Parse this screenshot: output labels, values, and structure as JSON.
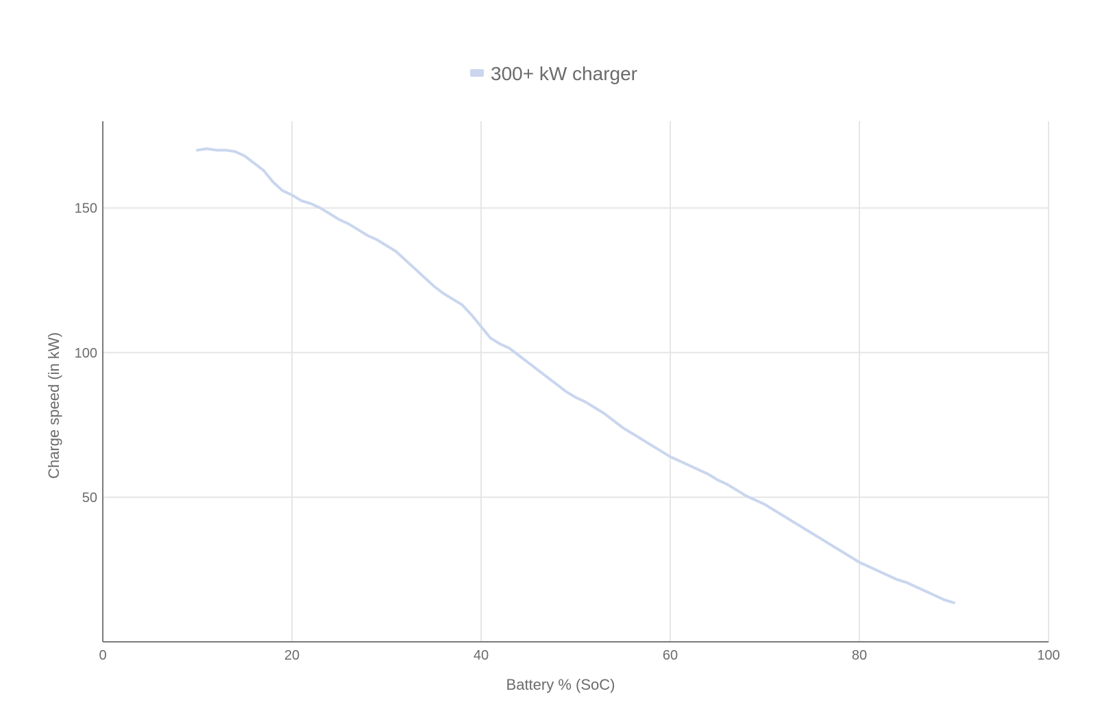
{
  "chart_data": {
    "type": "line",
    "title": "",
    "xlabel": "Battery % (SoC)",
    "ylabel": "Charge speed (in kW)",
    "xlim": [
      0,
      100
    ],
    "ylim": [
      0,
      180
    ],
    "xticks": [
      0,
      20,
      40,
      60,
      80,
      100
    ],
    "yticks": [
      50,
      100,
      150
    ],
    "grid": true,
    "legend_placement": "top-center",
    "series": [
      {
        "name": "300+ kW charger",
        "color": "#c9d6ee",
        "x": [
          10,
          11,
          12,
          13,
          14,
          15,
          16,
          17,
          18,
          19,
          20,
          21,
          22,
          23,
          24,
          25,
          26,
          27,
          28,
          29,
          30,
          31,
          32,
          33,
          34,
          35,
          36,
          37,
          38,
          39,
          40,
          41,
          42,
          43,
          44,
          45,
          46,
          47,
          48,
          49,
          50,
          51,
          52,
          53,
          54,
          55,
          56,
          57,
          58,
          59,
          60,
          61,
          62,
          63,
          64,
          65,
          66,
          67,
          68,
          69,
          70,
          71,
          72,
          73,
          74,
          75,
          76,
          77,
          78,
          79,
          80,
          81,
          82,
          83,
          84,
          85,
          86,
          87,
          88,
          89,
          90
        ],
        "y": [
          170,
          170.5,
          170,
          170,
          169.5,
          168,
          165.5,
          163,
          159,
          156,
          154.5,
          152.5,
          151.5,
          150,
          148,
          146,
          144.5,
          142.5,
          140.5,
          139,
          137,
          135,
          132,
          129,
          126,
          123,
          120.5,
          118.5,
          116.5,
          113,
          109,
          105,
          103,
          101.5,
          99,
          96.5,
          94,
          91.5,
          89,
          86.5,
          84.5,
          83,
          81,
          79,
          76.5,
          74,
          72,
          70,
          68,
          66,
          64,
          62.5,
          61,
          59.5,
          58,
          56,
          54.5,
          52.5,
          50.5,
          49,
          47.5,
          45.5,
          43.5,
          41.5,
          39.5,
          37.5,
          35.5,
          33.5,
          31.5,
          29.5,
          27.5,
          26,
          24.5,
          23,
          21.5,
          20.5,
          19,
          17.5,
          16,
          14.5,
          13.5
        ]
      }
    ]
  }
}
